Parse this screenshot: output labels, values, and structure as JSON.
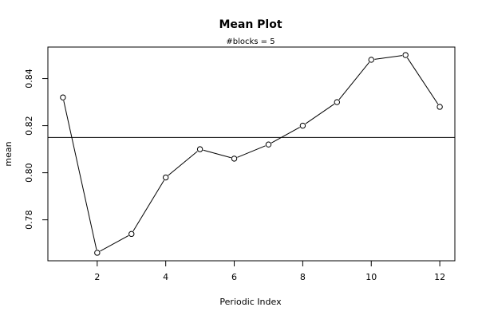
{
  "chart_data": {
    "type": "line",
    "title": "Mean Plot",
    "subtitle": "#blocks =  5",
    "xlabel": "Periodic Index",
    "ylabel": "mean",
    "x": [
      1,
      2,
      3,
      4,
      5,
      6,
      7,
      8,
      9,
      10,
      11,
      12
    ],
    "y": [
      0.832,
      0.766,
      0.774,
      0.798,
      0.81,
      0.806,
      0.812,
      0.82,
      0.83,
      0.848,
      0.85,
      0.828
    ],
    "reference_line": 0.815,
    "xticks": [
      2,
      4,
      6,
      8,
      10,
      12
    ],
    "yticks": [
      0.78,
      0.8,
      0.82,
      0.84
    ],
    "ytick_labels": [
      "0.78",
      "0.80",
      "0.82",
      "0.84"
    ],
    "xlim": [
      0.56,
      12.44
    ],
    "ylim": [
      0.7626,
      0.8534
    ],
    "marker": "open-circle",
    "grid": false
  }
}
